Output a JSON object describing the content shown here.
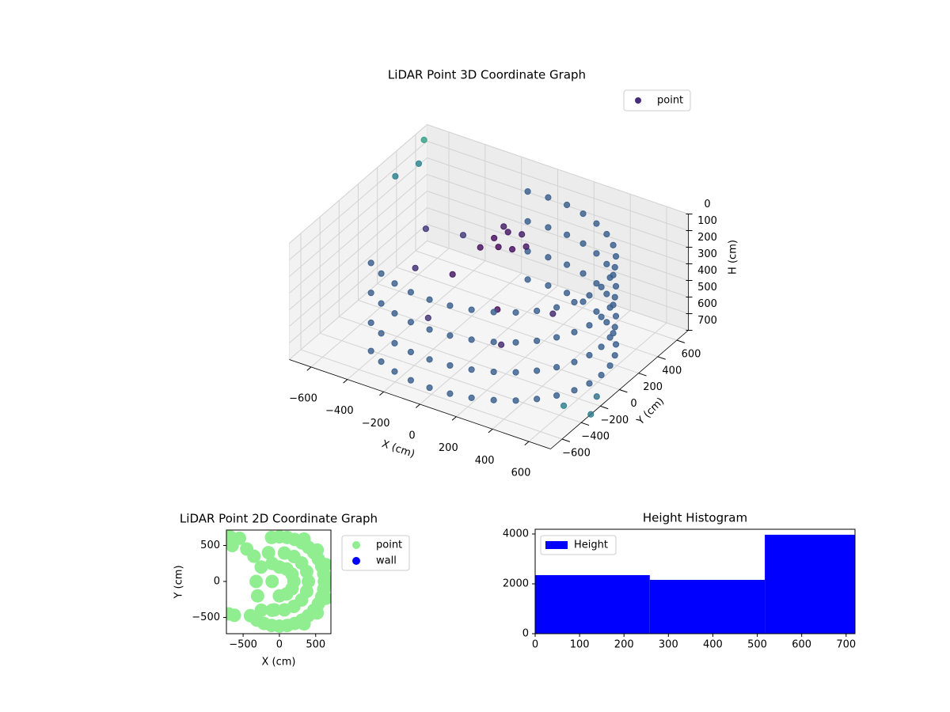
{
  "chart_data": [
    {
      "type": "scatter3d",
      "title": "LiDAR Point 3D Coordinate Graph",
      "xlabel": "X (cm)",
      "ylabel": "Y (cm)",
      "zlabel": "H (cm)",
      "legend": "upper right",
      "colormap": "viridis",
      "zinverted": true,
      "xlim": [
        -720,
        720
      ],
      "ylim": [
        -720,
        720
      ],
      "zlim": [
        0,
        700
      ],
      "xticks": [
        {
          "value": -600,
          "label": "−600"
        },
        {
          "value": -400,
          "label": "−400"
        },
        {
          "value": -200,
          "label": "−200"
        },
        0,
        200,
        400,
        600
      ],
      "yticks": [
        {
          "value": -600,
          "label": "−600"
        },
        {
          "value": -400,
          "label": "−400"
        },
        {
          "value": -200,
          "label": "−200"
        },
        0,
        200,
        400,
        600
      ],
      "zticks": [
        0,
        100,
        200,
        300,
        400,
        500,
        600,
        700
      ],
      "series": [
        {
          "name": "point",
          "color": "#472c7a",
          "x": [
            -399,
            -310,
            -212,
            -108,
            0,
            108,
            212,
            310,
            399,
            475,
            537,
            583,
            611,
            620,
            611,
            583,
            537,
            475,
            399,
            310,
            212,
            108,
            0,
            -108,
            -399,
            -310,
            -212,
            -108,
            0,
            108,
            212,
            310,
            399,
            475,
            537,
            583,
            611,
            620,
            611,
            583,
            537,
            475,
            399,
            310,
            212,
            108,
            0,
            -108,
            -399,
            -310,
            -212,
            -108,
            0,
            108,
            212,
            310,
            399,
            475,
            537,
            583,
            611,
            620,
            611,
            583,
            537,
            475,
            399,
            310,
            212,
            108,
            0,
            -108,
            -399,
            -310,
            -212,
            -108,
            0,
            108,
            212,
            310,
            399,
            475,
            537,
            583,
            611,
            620,
            611,
            583,
            537,
            475,
            399,
            310,
            212,
            108,
            0,
            -108,
            -50,
            0,
            50,
            -100,
            0,
            50,
            -50,
            100,
            -300,
            -200,
            100,
            -300,
            200,
            -400,
            300,
            -150,
            -700,
            -650,
            -700,
            720,
            700,
            650
          ],
          "y": [
            -475,
            -537,
            -583,
            -611,
            -620,
            -611,
            -583,
            -537,
            -475,
            -399,
            -310,
            -212,
            -108,
            0,
            108,
            212,
            310,
            399,
            475,
            537,
            583,
            611,
            620,
            611,
            -475,
            -537,
            -583,
            -611,
            -620,
            -611,
            -583,
            -537,
            -475,
            -399,
            -310,
            -212,
            -108,
            0,
            108,
            212,
            310,
            399,
            475,
            537,
            583,
            611,
            620,
            611,
            -475,
            -537,
            -583,
            -611,
            -620,
            -611,
            -583,
            -537,
            -475,
            -399,
            -310,
            -212,
            -108,
            0,
            108,
            212,
            310,
            399,
            475,
            537,
            583,
            611,
            620,
            611,
            -475,
            -537,
            -583,
            -611,
            -620,
            -611,
            -583,
            -537,
            -475,
            -399,
            -310,
            -212,
            -108,
            0,
            108,
            212,
            310,
            399,
            475,
            537,
            583,
            611,
            620,
            611,
            150,
            200,
            150,
            100,
            100,
            250,
            250,
            200,
            300,
            0,
            -100,
            -200,
            -250,
            100,
            100,
            -350,
            650,
            500,
            350,
            -300,
            -200,
            -450
          ],
          "z": [
            120,
            120,
            120,
            120,
            120,
            120,
            120,
            120,
            120,
            120,
            120,
            120,
            120,
            120,
            120,
            120,
            120,
            120,
            120,
            120,
            120,
            120,
            120,
            120,
            300,
            300,
            300,
            300,
            300,
            300,
            300,
            300,
            300,
            300,
            300,
            300,
            300,
            300,
            300,
            300,
            300,
            300,
            300,
            300,
            300,
            300,
            300,
            300,
            480,
            480,
            480,
            480,
            480,
            480,
            480,
            480,
            480,
            480,
            480,
            480,
            480,
            480,
            480,
            480,
            480,
            480,
            480,
            480,
            480,
            480,
            480,
            480,
            650,
            650,
            650,
            650,
            650,
            650,
            650,
            650,
            650,
            650,
            650,
            650,
            650,
            650,
            650,
            650,
            650,
            650,
            650,
            650,
            650,
            650,
            650,
            650,
            150,
            120,
            180,
            200,
            160,
            140,
            130,
            170,
            300,
            350,
            400,
            250,
            500,
            200,
            450,
            420,
            50,
            100,
            120,
            700,
            650,
            600
          ]
        }
      ]
    },
    {
      "type": "scatter",
      "title": "LiDAR Point 2D Coordinate Graph",
      "xlabel": "X (cm)",
      "ylabel": "Y (cm)",
      "legend": "outside right",
      "xlim": [
        -730,
        710
      ],
      "ylim": [
        -725,
        714
      ],
      "xticks": [
        {
          "value": -500,
          "label": "−500"
        },
        0,
        500
      ],
      "yticks": [
        {
          "value": -500,
          "label": "−500"
        },
        0,
        500
      ],
      "series": [
        {
          "name": "point",
          "color": "#90ee90",
          "x": [
            -399,
            -310,
            -212,
            -108,
            0,
            108,
            212,
            310,
            399,
            475,
            537,
            583,
            611,
            620,
            611,
            583,
            537,
            475,
            399,
            310,
            212,
            108,
            0,
            -108,
            -69,
            69,
            200,
            306,
            376,
            400,
            376,
            306,
            200,
            69,
            0,
            100,
            173,
            200,
            173,
            100,
            0,
            340,
            521,
            639,
            680,
            639,
            521,
            340,
            -250,
            -300,
            -320,
            -250,
            -150,
            -100,
            -100,
            -100,
            -650,
            -550,
            -450,
            -350,
            -680,
            -700,
            -620
          ],
          "y": [
            -475,
            -537,
            -583,
            -611,
            -620,
            -611,
            -583,
            -537,
            -475,
            -399,
            -310,
            -212,
            -108,
            0,
            108,
            212,
            310,
            399,
            475,
            537,
            583,
            611,
            620,
            611,
            -394,
            -394,
            -346,
            -257,
            -137,
            0,
            137,
            257,
            346,
            394,
            -200,
            -173,
            -100,
            0,
            100,
            173,
            200,
            -589,
            -437,
            -233,
            0,
            233,
            437,
            589,
            -400,
            -200,
            0,
            200,
            400,
            -400,
            0,
            250,
            500,
            600,
            450,
            350,
            620,
            -450,
            -470
          ]
        },
        {
          "name": "wall",
          "color": "#0000ff",
          "x": [],
          "y": []
        }
      ]
    },
    {
      "type": "histogram",
      "title": "Height Histogram",
      "name": "Height",
      "color": "#0000ff",
      "legend": "upper left",
      "bins": [
        0,
        258,
        517,
        720
      ],
      "values": [
        2350,
        2160,
        3970
      ],
      "xlim": [
        0,
        720
      ],
      "ylim": [
        0,
        4190
      ],
      "xticks": [
        0,
        100,
        200,
        300,
        400,
        500,
        600,
        700
      ],
      "yticks": [
        0,
        2000,
        4000
      ]
    }
  ]
}
